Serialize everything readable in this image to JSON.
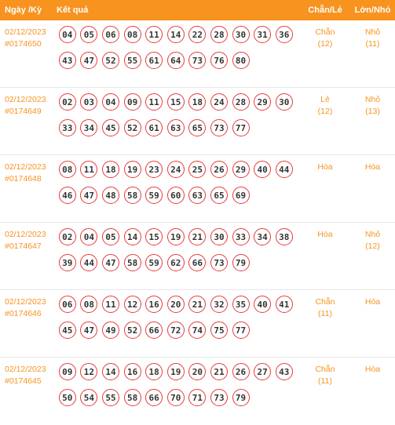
{
  "header": {
    "date": "Ngày /Kỳ",
    "result": "Kết quả",
    "chan_le": "Chẵn/Lẻ",
    "lon_nho": "Lớn/Nhỏ"
  },
  "rows": [
    {
      "date": "02/12/2023",
      "draw": "#0174650",
      "balls": [
        "04",
        "05",
        "06",
        "08",
        "11",
        "14",
        "22",
        "28",
        "30",
        "31",
        "36",
        "43",
        "47",
        "52",
        "55",
        "61",
        "64",
        "73",
        "76",
        "80"
      ],
      "chan_le": "Chẵn",
      "chan_le_count": "(12)",
      "lon_nho": "Nhỏ",
      "lon_nho_count": "(11)"
    },
    {
      "date": "02/12/2023",
      "draw": "#0174649",
      "balls": [
        "02",
        "03",
        "04",
        "09",
        "11",
        "15",
        "18",
        "24",
        "28",
        "29",
        "30",
        "33",
        "34",
        "45",
        "52",
        "61",
        "63",
        "65",
        "73",
        "77"
      ],
      "chan_le": "Lẻ",
      "chan_le_count": "(12)",
      "lon_nho": "Nhỏ",
      "lon_nho_count": "(13)"
    },
    {
      "date": "02/12/2023",
      "draw": "#0174648",
      "balls": [
        "08",
        "11",
        "18",
        "19",
        "23",
        "24",
        "25",
        "26",
        "29",
        "40",
        "44",
        "46",
        "47",
        "48",
        "58",
        "59",
        "60",
        "63",
        "65",
        "69"
      ],
      "chan_le": "Hòa",
      "chan_le_count": "",
      "lon_nho": "Hòa",
      "lon_nho_count": ""
    },
    {
      "date": "02/12/2023",
      "draw": "#0174647",
      "balls": [
        "02",
        "04",
        "05",
        "14",
        "15",
        "19",
        "21",
        "30",
        "33",
        "34",
        "38",
        "39",
        "44",
        "47",
        "58",
        "59",
        "62",
        "66",
        "73",
        "79"
      ],
      "chan_le": "Hòa",
      "chan_le_count": "",
      "lon_nho": "Nhỏ",
      "lon_nho_count": "(12)"
    },
    {
      "date": "02/12/2023",
      "draw": "#0174646",
      "balls": [
        "06",
        "08",
        "11",
        "12",
        "16",
        "20",
        "21",
        "32",
        "35",
        "40",
        "41",
        "45",
        "47",
        "49",
        "52",
        "66",
        "72",
        "74",
        "75",
        "77"
      ],
      "chan_le": "Chẵn",
      "chan_le_count": "(11)",
      "lon_nho": "Hòa",
      "lon_nho_count": ""
    },
    {
      "date": "02/12/2023",
      "draw": "#0174645",
      "balls": [
        "09",
        "12",
        "14",
        "16",
        "18",
        "19",
        "20",
        "21",
        "26",
        "27",
        "43",
        "50",
        "54",
        "55",
        "58",
        "66",
        "70",
        "71",
        "73",
        "79"
      ],
      "chan_le": "Chẵn",
      "chan_le_count": "(11)",
      "lon_nho": "Hòa",
      "lon_nho_count": ""
    }
  ]
}
